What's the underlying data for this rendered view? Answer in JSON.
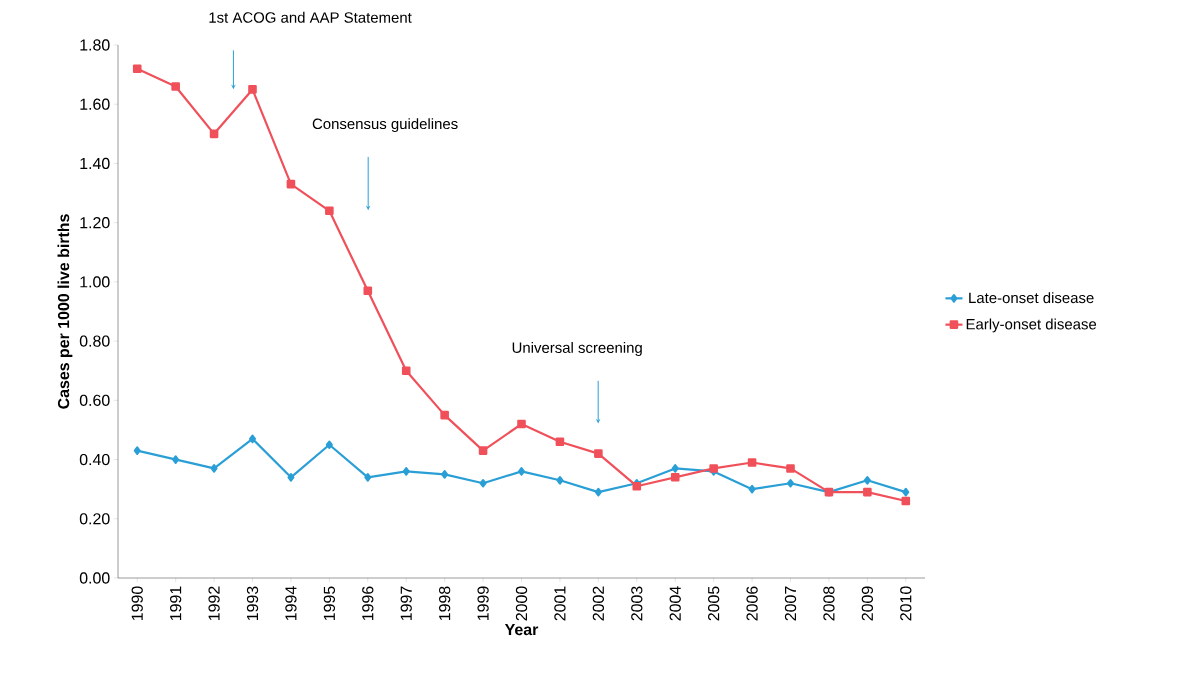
{
  "chart_data": {
    "type": "line",
    "xlabel": "Year",
    "ylabel": "Cases per 1000 live births",
    "x": [
      1990,
      1991,
      1992,
      1993,
      1994,
      1995,
      1996,
      1997,
      1998,
      1999,
      2000,
      2001,
      2002,
      2003,
      2004,
      2005,
      2006,
      2007,
      2008,
      2009,
      2010
    ],
    "series": [
      {
        "name": "Late-onset disease",
        "color": "#2a9fd6",
        "marker": "diamond",
        "values": [
          0.43,
          0.4,
          0.37,
          0.47,
          0.34,
          0.45,
          0.34,
          0.36,
          0.35,
          0.32,
          0.36,
          0.33,
          0.29,
          0.32,
          0.37,
          0.36,
          0.3,
          0.32,
          0.29,
          0.33,
          0.29
        ]
      },
      {
        "name": "Early-onset disease",
        "color": "#f0505a",
        "marker": "square",
        "values": [
          1.72,
          1.66,
          1.5,
          1.65,
          1.33,
          1.24,
          0.97,
          0.7,
          0.55,
          0.43,
          0.52,
          0.46,
          0.42,
          0.31,
          0.34,
          0.37,
          0.39,
          0.37,
          0.29,
          0.29,
          0.26
        ]
      }
    ],
    "xlim": [
      1989.5,
      2010.5
    ],
    "xticks": [
      1990,
      1991,
      1992,
      1993,
      1994,
      1995,
      1996,
      1997,
      1998,
      1999,
      2000,
      2001,
      2002,
      2003,
      2004,
      2005,
      2006,
      2007,
      2008,
      2009,
      2010
    ],
    "ylim": [
      0,
      1.8
    ],
    "yticks": [
      {
        "value": 0,
        "label": "0.00"
      },
      {
        "value": 0.2,
        "label": "0.20"
      },
      {
        "value": 0.4,
        "label": "0.40"
      },
      {
        "value": 0.6,
        "label": "0.60"
      },
      {
        "value": 0.8,
        "label": "0.80"
      },
      {
        "value": 1.0,
        "label": "1.00"
      },
      {
        "value": 1.2,
        "label": "1.20"
      },
      {
        "value": 1.4,
        "label": "1.40"
      },
      {
        "value": 1.6,
        "label": "1.60"
      },
      {
        "value": 1.8,
        "label": "1.80"
      }
    ],
    "annotations": [
      "1st ACOG and AAP Statement",
      "Consensus guidelines",
      "Universal screening"
    ],
    "legend": "right",
    "grid": false,
    "line_style": "solid"
  }
}
